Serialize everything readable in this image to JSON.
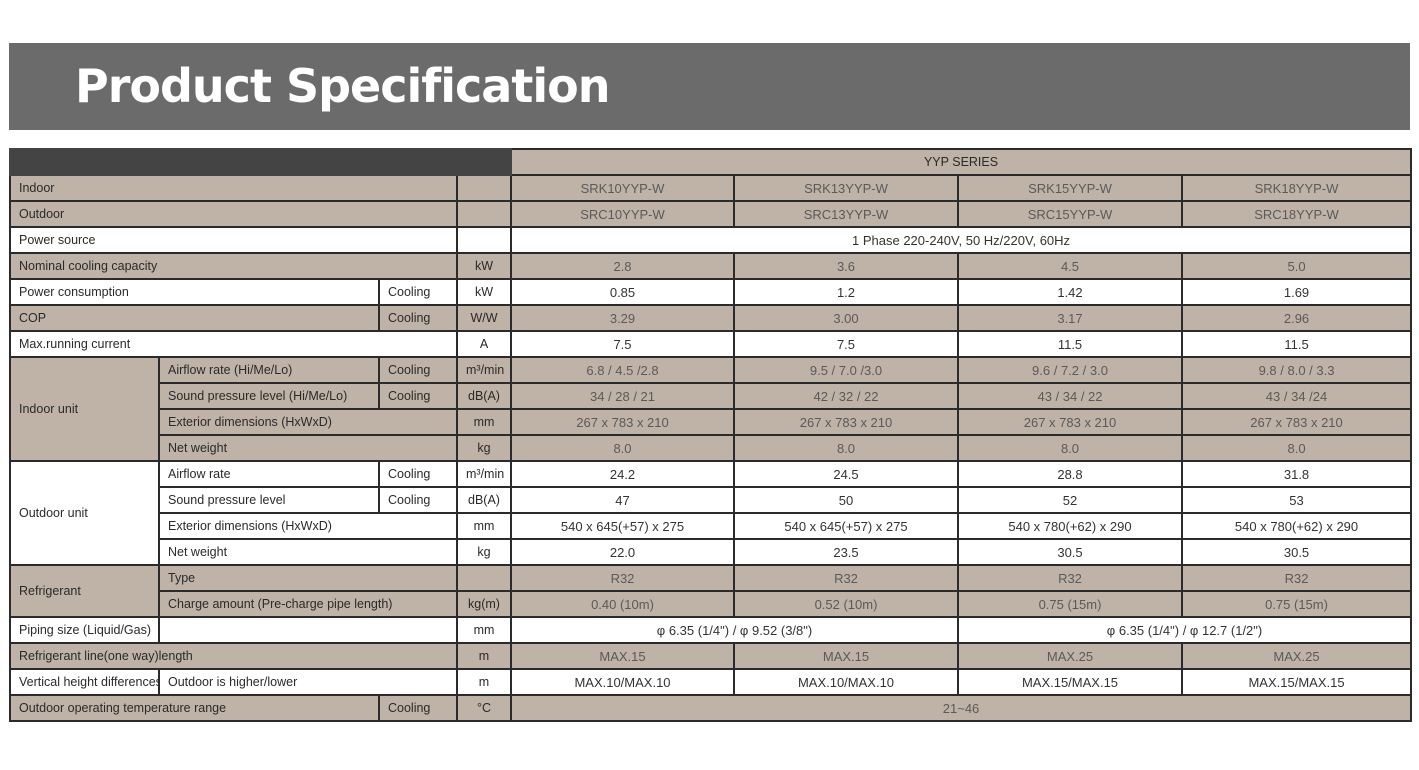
{
  "header": {
    "title": "Product Specification"
  },
  "colors": {
    "header_bg": "#6b6b6b",
    "tan": "#bfb3a7",
    "dark": "#444444",
    "border": "#2b2b2b"
  },
  "table": {
    "rows": [
      [
        "",
        "YYP SERIES"
      ],
      [
        "Indoor",
        "",
        "SRK10YYP-W",
        "SRK13YYP-W",
        "SRK15YYP-W",
        "SRK18YYP-W"
      ],
      [
        "Outdoor",
        "",
        "SRC10YYP-W",
        "SRC13YYP-W",
        "SRC15YYP-W",
        "SRC18YYP-W"
      ],
      [
        "Power source",
        "",
        "1 Phase 220-240V, 50 Hz/220V, 60Hz"
      ],
      [
        "Nominal cooling capacity",
        "kW",
        "2.8",
        "3.6",
        "4.5",
        "5.0"
      ],
      [
        "Power consumption",
        "Cooling",
        "kW",
        "0.85",
        "1.2",
        "1.42",
        "1.69"
      ],
      [
        "COP",
        "Cooling",
        "W/W",
        "3.29",
        "3.00",
        "3.17",
        "2.96"
      ],
      [
        "Max.running current",
        "A",
        "7.5",
        "7.5",
        "11.5",
        "11.5"
      ],
      [
        "Indoor unit",
        "Airflow rate (Hi/Me/Lo)",
        "Cooling",
        "m³/min",
        "6.8 / 4.5 /2.8",
        "9.5 / 7.0 /3.0",
        "9.6 / 7.2 / 3.0",
        "9.8 / 8.0 / 3.3"
      ],
      [
        "Sound pressure level (Hi/Me/Lo)",
        "Cooling",
        "dB(A)",
        "34 / 28 / 21",
        "42 / 32 / 22",
        "43 / 34 / 22",
        "43 / 34 /24"
      ],
      [
        "Exterior dimensions (HxWxD)",
        "mm",
        "267 x 783 x 210",
        "267 x 783 x 210",
        "267 x 783 x 210",
        "267 x 783 x 210"
      ],
      [
        "Net weight",
        "kg",
        "8.0",
        "8.0",
        "8.0",
        "8.0"
      ],
      [
        "Outdoor unit",
        "Airflow rate",
        "Cooling",
        "m³/min",
        "24.2",
        "24.5",
        "28.8",
        "31.8"
      ],
      [
        "Sound pressure level",
        "Cooling",
        "dB(A)",
        "47",
        "50",
        "52",
        "53"
      ],
      [
        "Exterior dimensions (HxWxD)",
        "mm",
        "540 x 645(+57) x 275",
        "540 x 645(+57) x 275",
        "540 x 780(+62) x 290",
        "540 x 780(+62) x 290"
      ],
      [
        "Net weight",
        "kg",
        "22.0",
        "23.5",
        "30.5",
        "30.5"
      ],
      [
        "Refrigerant",
        "Type",
        "",
        "R32",
        "R32",
        "R32",
        "R32"
      ],
      [
        "Charge amount (Pre-charge pipe length)",
        "kg(m)",
        "0.40 (10m)",
        "0.52 (10m)",
        "0.75 (15m)",
        "0.75 (15m)"
      ],
      [
        "Piping size (Liquid/Gas)",
        "",
        "mm",
        "φ 6.35 (1/4\") / φ 9.52 (3/8\")",
        "φ 6.35 (1/4\") / φ 12.7 (1/2\")"
      ],
      [
        "Refrigerant line(one way)length",
        "m",
        "MAX.15",
        "MAX.15",
        "MAX.25",
        "MAX.25"
      ],
      [
        "Vertical height differences",
        "Outdoor is higher/lower",
        "m",
        "MAX.10/MAX.10",
        "MAX.10/MAX.10",
        "MAX.15/MAX.15",
        "MAX.15/MAX.15"
      ],
      [
        "Outdoor operating temperature range",
        "Cooling",
        "°C",
        "21~46"
      ]
    ]
  }
}
